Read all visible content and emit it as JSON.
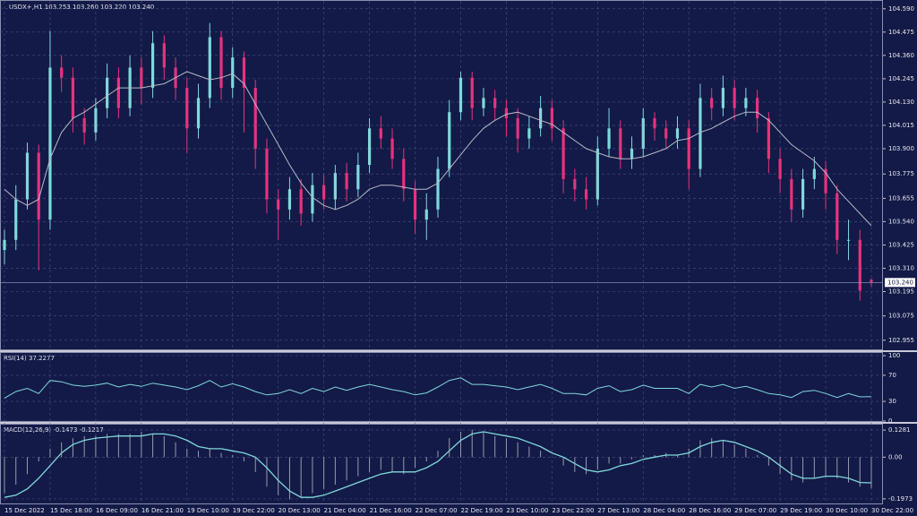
{
  "chart_data": [
    {
      "type": "candlestick",
      "title": "USDX+,H1  103.253 103.260 103.220 103.240",
      "categories": [
        "15 Dec 2022",
        null,
        null,
        null,
        "15 Dec 18:00",
        null,
        null,
        null,
        "16 Dec 09:00",
        null,
        null,
        null,
        "16 Dec 21:00",
        null,
        null,
        null,
        "19 Dec 10:00",
        null,
        null,
        null,
        "19 Dec 22:00",
        null,
        null,
        null,
        "20 Dec 13:00",
        null,
        null,
        null,
        "21 Dec 04:00",
        null,
        null,
        null,
        "21 Dec 16:00",
        null,
        null,
        null,
        "22 Dec 07:00",
        null,
        null,
        null,
        "22 Dec 19:00",
        null,
        null,
        null,
        "23 Dec 10:00",
        null,
        null,
        null,
        "23 Dec 22:00",
        null,
        null,
        null,
        "27 Dec 13:00",
        null,
        null,
        null,
        "28 Dec 04:00",
        null,
        null,
        null,
        "28 Dec 16:00",
        null,
        null,
        null,
        "29 Dec 07:00",
        null,
        null,
        null,
        "29 Dec 19:00",
        null,
        null,
        null,
        "30 Dec 10:00",
        null,
        null,
        null,
        "30 Dec 22:00"
      ],
      "open": [
        103.4,
        103.45,
        103.65,
        103.88,
        103.55,
        104.3,
        104.25,
        104.05,
        103.98,
        104.1,
        104.25,
        104.1,
        104.3,
        104.2,
        104.42,
        104.3,
        104.2,
        104.0,
        104.15,
        104.45,
        104.2,
        104.35,
        104.2,
        103.9,
        103.65,
        103.6,
        103.7,
        103.58,
        103.72,
        103.65,
        103.78,
        103.7,
        103.82,
        104.0,
        103.95,
        103.85,
        103.7,
        103.55,
        103.6,
        103.8,
        104.08,
        104.25,
        104.1,
        104.15,
        104.1,
        104.05,
        103.95,
        104.0,
        104.1,
        104.0,
        103.75,
        103.7,
        103.65,
        103.9,
        104.0,
        103.85,
        103.9,
        104.05,
        104.0,
        103.95,
        104.0,
        103.8,
        104.15,
        104.1,
        104.2,
        104.1,
        104.15,
        104.05,
        103.85,
        103.75,
        103.6,
        103.75,
        103.8,
        103.68,
        103.45,
        103.45,
        103.253
      ],
      "high": [
        103.5,
        103.72,
        103.93,
        103.92,
        104.48,
        104.36,
        104.3,
        104.1,
        104.15,
        104.32,
        104.3,
        104.36,
        104.35,
        104.48,
        104.46,
        104.35,
        104.25,
        104.22,
        104.52,
        104.48,
        104.4,
        104.38,
        104.24,
        103.95,
        103.7,
        103.76,
        103.75,
        103.78,
        103.77,
        103.82,
        103.83,
        103.88,
        104.05,
        104.06,
        104.0,
        103.9,
        103.74,
        103.68,
        103.86,
        104.14,
        104.28,
        104.28,
        104.2,
        104.19,
        104.14,
        104.1,
        104.06,
        104.16,
        104.14,
        104.04,
        103.8,
        103.76,
        103.96,
        104.1,
        104.04,
        103.96,
        104.1,
        104.08,
        104.04,
        104.06,
        104.04,
        104.22,
        104.2,
        104.26,
        104.24,
        104.2,
        104.19,
        104.08,
        103.9,
        103.8,
        103.8,
        103.86,
        103.84,
        103.72,
        103.55,
        103.5,
        103.26
      ],
      "low": [
        103.33,
        103.4,
        103.6,
        103.3,
        103.5,
        104.18,
        103.98,
        103.92,
        103.94,
        104.05,
        104.05,
        104.06,
        104.12,
        104.15,
        104.24,
        104.14,
        103.88,
        103.95,
        104.1,
        104.14,
        104.15,
        103.98,
        103.8,
        103.58,
        103.45,
        103.55,
        103.52,
        103.54,
        103.6,
        103.6,
        103.64,
        103.66,
        103.78,
        103.9,
        103.8,
        103.64,
        103.48,
        103.45,
        103.56,
        103.76,
        104.04,
        104.04,
        104.06,
        104.04,
        103.96,
        103.88,
        103.9,
        103.96,
        103.94,
        103.68,
        103.64,
        103.6,
        103.62,
        103.86,
        103.8,
        103.8,
        103.86,
        103.94,
        103.9,
        103.9,
        103.7,
        103.76,
        104.04,
        104.06,
        104.04,
        104.06,
        103.98,
        103.78,
        103.68,
        103.54,
        103.56,
        103.7,
        103.6,
        103.38,
        103.35,
        103.15,
        103.22
      ],
      "close": [
        103.45,
        103.65,
        103.88,
        103.55,
        104.3,
        104.25,
        104.05,
        103.98,
        104.1,
        104.25,
        104.1,
        104.3,
        104.2,
        104.42,
        104.3,
        104.2,
        104.0,
        104.15,
        104.45,
        104.2,
        104.35,
        104.2,
        103.9,
        103.65,
        103.6,
        103.7,
        103.58,
        103.72,
        103.65,
        103.78,
        103.7,
        103.82,
        104.0,
        103.95,
        103.85,
        103.7,
        103.55,
        103.6,
        103.8,
        104.08,
        104.25,
        104.1,
        104.15,
        104.1,
        104.05,
        103.95,
        104.0,
        104.1,
        104.0,
        103.75,
        103.7,
        103.65,
        103.9,
        104.0,
        103.85,
        103.9,
        104.05,
        104.0,
        103.95,
        104.0,
        103.8,
        104.15,
        104.1,
        104.2,
        104.1,
        104.15,
        104.05,
        103.85,
        103.75,
        103.6,
        103.75,
        103.8,
        103.68,
        103.45,
        103.45,
        103.2,
        103.24
      ],
      "ma": [
        103.7,
        103.65,
        103.62,
        103.65,
        103.85,
        103.98,
        104.05,
        104.08,
        104.12,
        104.16,
        104.2,
        104.2,
        104.2,
        104.21,
        104.22,
        104.25,
        104.28,
        104.26,
        104.24,
        104.25,
        104.27,
        104.22,
        104.12,
        104.02,
        103.92,
        103.82,
        103.73,
        103.66,
        103.62,
        103.6,
        103.62,
        103.65,
        103.7,
        103.72,
        103.72,
        103.71,
        103.7,
        103.7,
        103.73,
        103.8,
        103.87,
        103.94,
        104.0,
        104.04,
        104.07,
        104.08,
        104.06,
        104.04,
        104.02,
        103.98,
        103.94,
        103.9,
        103.88,
        103.86,
        103.85,
        103.85,
        103.86,
        103.88,
        103.9,
        103.94,
        103.95,
        103.98,
        104.0,
        104.03,
        104.06,
        104.08,
        104.08,
        104.04,
        103.98,
        103.92,
        103.88,
        103.84,
        103.78,
        103.7,
        103.64,
        103.58,
        103.52
      ],
      "up_color": "#7fd8dc",
      "down_color": "#e8327c",
      "ma_color": "#b8b8c8",
      "price_label": {
        "value": 103.24,
        "label": "103.240"
      },
      "ylim": [
        102.91,
        104.62
      ],
      "yticks": [
        {
          "value": 104.59,
          "label": "104.590"
        },
        {
          "value": 104.475,
          "label": "104.475"
        },
        {
          "value": 104.36,
          "label": "104.360"
        },
        {
          "value": 104.245,
          "label": "104.245"
        },
        {
          "value": 104.13,
          "label": "104.130"
        },
        {
          "value": 104.015,
          "label": "104.015"
        },
        {
          "value": 103.9,
          "label": "103.900"
        },
        {
          "value": 103.775,
          "label": "103.775"
        },
        {
          "value": 103.655,
          "label": "103.655"
        },
        {
          "value": 103.54,
          "label": "103.540"
        },
        {
          "value": 103.425,
          "label": "103.425"
        },
        {
          "value": 103.31,
          "label": "103.310"
        },
        {
          "value": 103.195,
          "label": "103.195"
        },
        {
          "value": 103.075,
          "label": "103.075"
        },
        {
          "value": 102.955,
          "label": "102.955"
        }
      ],
      "grid": true
    },
    {
      "type": "line",
      "title": "RSI(14) 37.2277",
      "values": [
        35,
        45,
        50,
        42,
        62,
        60,
        55,
        53,
        55,
        58,
        52,
        56,
        53,
        58,
        55,
        52,
        48,
        54,
        62,
        52,
        57,
        52,
        45,
        40,
        42,
        48,
        42,
        50,
        45,
        52,
        47,
        52,
        56,
        52,
        48,
        45,
        40,
        43,
        52,
        62,
        66,
        56,
        56,
        54,
        52,
        48,
        52,
        56,
        50,
        42,
        42,
        40,
        50,
        54,
        45,
        48,
        55,
        50,
        50,
        50,
        42,
        56,
        52,
        56,
        50,
        53,
        48,
        42,
        40,
        36,
        45,
        47,
        42,
        36,
        42,
        37,
        37.2277
      ],
      "color": "#7fd8dc",
      "ylim": [
        0,
        100
      ],
      "yticks": [
        100,
        70,
        30,
        0
      ],
      "grid": true
    },
    {
      "type": "macd",
      "title": "MACD(12,26,9) -0.1473 -0.1217",
      "histogram": [
        -0.17,
        -0.13,
        -0.08,
        -0.02,
        0.04,
        0.07,
        0.09,
        0.1,
        0.1,
        0.11,
        0.11,
        0.11,
        0.12,
        0.11,
        0.1,
        0.07,
        0.04,
        0.03,
        0.04,
        0.02,
        0.01,
        -0.02,
        -0.07,
        -0.14,
        -0.18,
        -0.2,
        -0.19,
        -0.17,
        -0.15,
        -0.13,
        -0.11,
        -0.09,
        -0.07,
        -0.06,
        -0.07,
        -0.08,
        -0.05,
        -0.02,
        0.03,
        0.09,
        0.12,
        0.13,
        0.12,
        0.1,
        0.09,
        0.07,
        0.05,
        0.03,
        0.0,
        -0.04,
        -0.07,
        -0.08,
        -0.06,
        -0.03,
        -0.03,
        -0.01,
        0.01,
        0.01,
        0.02,
        0.01,
        0.04,
        0.08,
        0.09,
        0.08,
        0.06,
        0.04,
        0.01,
        -0.04,
        -0.08,
        -0.11,
        -0.12,
        -0.1,
        -0.09,
        -0.1,
        -0.12,
        -0.14,
        -0.1473
      ],
      "signal": [
        -0.19,
        -0.18,
        -0.15,
        -0.1,
        -0.04,
        0.02,
        0.06,
        0.08,
        0.09,
        0.095,
        0.1,
        0.1,
        0.1,
        0.11,
        0.11,
        0.1,
        0.08,
        0.05,
        0.04,
        0.04,
        0.03,
        0.02,
        0.0,
        -0.05,
        -0.11,
        -0.16,
        -0.19,
        -0.19,
        -0.18,
        -0.16,
        -0.14,
        -0.12,
        -0.1,
        -0.08,
        -0.07,
        -0.07,
        -0.07,
        -0.05,
        -0.02,
        0.03,
        0.08,
        0.11,
        0.12,
        0.11,
        0.1,
        0.09,
        0.07,
        0.05,
        0.02,
        0.0,
        -0.03,
        -0.06,
        -0.07,
        -0.06,
        -0.04,
        -0.03,
        -0.01,
        0.0,
        0.01,
        0.01,
        0.02,
        0.05,
        0.07,
        0.08,
        0.07,
        0.05,
        0.03,
        0.0,
        -0.04,
        -0.08,
        -0.1,
        -0.1,
        -0.09,
        -0.09,
        -0.1,
        -0.12,
        -0.1217
      ],
      "histogram_color": "#9a9aaa",
      "signal_color": "#7fd8dc",
      "ylim": [
        -0.219,
        0.154
      ],
      "yticks": [
        0.1281,
        {
          "value": 0,
          "label": "0.00"
        },
        -0.1973
      ],
      "grid": true
    }
  ]
}
